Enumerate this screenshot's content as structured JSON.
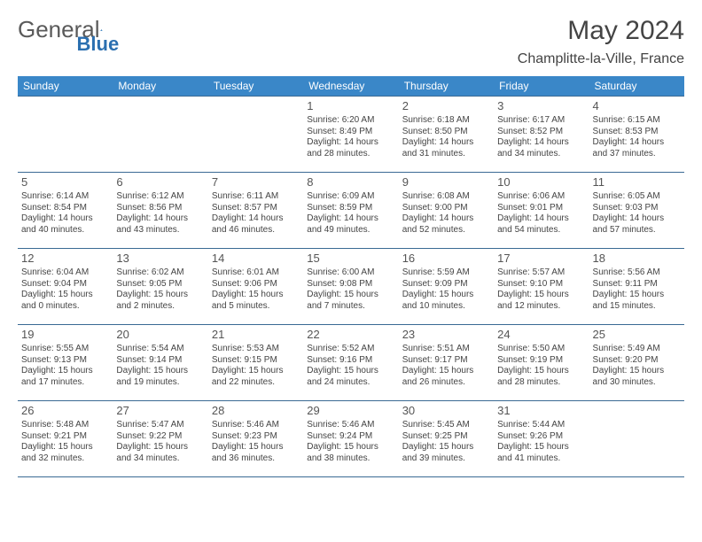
{
  "logo": {
    "part1": "General",
    "part2": "Blue"
  },
  "title": "May 2024",
  "location": "Champlitte-la-Ville, France",
  "colors": {
    "header_bg": "#3a87c8",
    "header_text": "#ffffff",
    "border": "#3a6a94",
    "logo_blue": "#2b6fb0",
    "text": "#444444"
  },
  "days_of_week": [
    "Sunday",
    "Monday",
    "Tuesday",
    "Wednesday",
    "Thursday",
    "Friday",
    "Saturday"
  ],
  "weeks": [
    [
      null,
      null,
      null,
      {
        "n": "1",
        "sr": "6:20 AM",
        "ss": "8:49 PM",
        "dl": "14 hours and 28 minutes."
      },
      {
        "n": "2",
        "sr": "6:18 AM",
        "ss": "8:50 PM",
        "dl": "14 hours and 31 minutes."
      },
      {
        "n": "3",
        "sr": "6:17 AM",
        "ss": "8:52 PM",
        "dl": "14 hours and 34 minutes."
      },
      {
        "n": "4",
        "sr": "6:15 AM",
        "ss": "8:53 PM",
        "dl": "14 hours and 37 minutes."
      }
    ],
    [
      {
        "n": "5",
        "sr": "6:14 AM",
        "ss": "8:54 PM",
        "dl": "14 hours and 40 minutes."
      },
      {
        "n": "6",
        "sr": "6:12 AM",
        "ss": "8:56 PM",
        "dl": "14 hours and 43 minutes."
      },
      {
        "n": "7",
        "sr": "6:11 AM",
        "ss": "8:57 PM",
        "dl": "14 hours and 46 minutes."
      },
      {
        "n": "8",
        "sr": "6:09 AM",
        "ss": "8:59 PM",
        "dl": "14 hours and 49 minutes."
      },
      {
        "n": "9",
        "sr": "6:08 AM",
        "ss": "9:00 PM",
        "dl": "14 hours and 52 minutes."
      },
      {
        "n": "10",
        "sr": "6:06 AM",
        "ss": "9:01 PM",
        "dl": "14 hours and 54 minutes."
      },
      {
        "n": "11",
        "sr": "6:05 AM",
        "ss": "9:03 PM",
        "dl": "14 hours and 57 minutes."
      }
    ],
    [
      {
        "n": "12",
        "sr": "6:04 AM",
        "ss": "9:04 PM",
        "dl": "15 hours and 0 minutes."
      },
      {
        "n": "13",
        "sr": "6:02 AM",
        "ss": "9:05 PM",
        "dl": "15 hours and 2 minutes."
      },
      {
        "n": "14",
        "sr": "6:01 AM",
        "ss": "9:06 PM",
        "dl": "15 hours and 5 minutes."
      },
      {
        "n": "15",
        "sr": "6:00 AM",
        "ss": "9:08 PM",
        "dl": "15 hours and 7 minutes."
      },
      {
        "n": "16",
        "sr": "5:59 AM",
        "ss": "9:09 PM",
        "dl": "15 hours and 10 minutes."
      },
      {
        "n": "17",
        "sr": "5:57 AM",
        "ss": "9:10 PM",
        "dl": "15 hours and 12 minutes."
      },
      {
        "n": "18",
        "sr": "5:56 AM",
        "ss": "9:11 PM",
        "dl": "15 hours and 15 minutes."
      }
    ],
    [
      {
        "n": "19",
        "sr": "5:55 AM",
        "ss": "9:13 PM",
        "dl": "15 hours and 17 minutes."
      },
      {
        "n": "20",
        "sr": "5:54 AM",
        "ss": "9:14 PM",
        "dl": "15 hours and 19 minutes."
      },
      {
        "n": "21",
        "sr": "5:53 AM",
        "ss": "9:15 PM",
        "dl": "15 hours and 22 minutes."
      },
      {
        "n": "22",
        "sr": "5:52 AM",
        "ss": "9:16 PM",
        "dl": "15 hours and 24 minutes."
      },
      {
        "n": "23",
        "sr": "5:51 AM",
        "ss": "9:17 PM",
        "dl": "15 hours and 26 minutes."
      },
      {
        "n": "24",
        "sr": "5:50 AM",
        "ss": "9:19 PM",
        "dl": "15 hours and 28 minutes."
      },
      {
        "n": "25",
        "sr": "5:49 AM",
        "ss": "9:20 PM",
        "dl": "15 hours and 30 minutes."
      }
    ],
    [
      {
        "n": "26",
        "sr": "5:48 AM",
        "ss": "9:21 PM",
        "dl": "15 hours and 32 minutes."
      },
      {
        "n": "27",
        "sr": "5:47 AM",
        "ss": "9:22 PM",
        "dl": "15 hours and 34 minutes."
      },
      {
        "n": "28",
        "sr": "5:46 AM",
        "ss": "9:23 PM",
        "dl": "15 hours and 36 minutes."
      },
      {
        "n": "29",
        "sr": "5:46 AM",
        "ss": "9:24 PM",
        "dl": "15 hours and 38 minutes."
      },
      {
        "n": "30",
        "sr": "5:45 AM",
        "ss": "9:25 PM",
        "dl": "15 hours and 39 minutes."
      },
      {
        "n": "31",
        "sr": "5:44 AM",
        "ss": "9:26 PM",
        "dl": "15 hours and 41 minutes."
      },
      null
    ]
  ],
  "labels": {
    "sunrise": "Sunrise: ",
    "sunset": "Sunset: ",
    "daylight": "Daylight: "
  }
}
